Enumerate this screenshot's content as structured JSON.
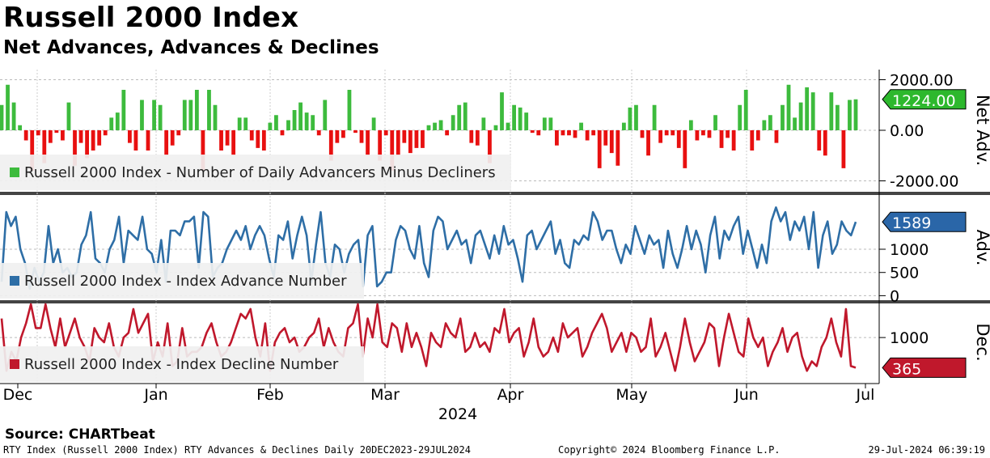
{
  "title": "Russell 2000 Index",
  "subtitle": "Net Advances, Advances & Declines",
  "source": "Source: CHARTbeat",
  "footer": {
    "left": "RTY Index (Russell 2000 Index) RTY Advances & Declines  Daily 20DEC2023-29JUL2024",
    "middle": "Copyright© 2024 Bloomberg Finance L.P.",
    "right": "29-Jul-2024 06:39:19"
  },
  "colors": {
    "positive": "#3dbb3d",
    "negative": "#e81010",
    "advance_line": "#2e6ea6",
    "decline_line": "#c0182c",
    "advance_tag": "#2a66a8",
    "decline_tag": "#c0182c",
    "net_tag": "#2db82d",
    "legend_bg": "#f0f0f0",
    "separator": "#444444"
  },
  "chart_data": [
    {
      "type": "bar",
      "panel": "net",
      "title": "Net Adv.",
      "legend": "Russell 2000 Index - Number of Daily Advancers Minus Decliners",
      "ylim": [
        -2400,
        2400
      ],
      "ticks": [
        2000,
        0,
        -2000
      ],
      "tick_labels": [
        "2000.00",
        "0.00",
        "-2000.00"
      ],
      "last_value_label": "1224.00",
      "values": [
        1000,
        1800,
        1100,
        200,
        -400,
        -1600,
        -200,
        -1300,
        -500,
        -100,
        -400,
        1100,
        -1400,
        -500,
        -1100,
        -800,
        -600,
        -200,
        500,
        700,
        1600,
        -500,
        -800,
        1200,
        -800,
        1200,
        1000,
        -1000,
        -600,
        -200,
        1200,
        1200,
        1600,
        -1600,
        1600,
        1000,
        -800,
        -600,
        -1000,
        500,
        500,
        -400,
        -700,
        -800,
        300,
        600,
        -200,
        400,
        800,
        1100,
        700,
        600,
        -200,
        1200,
        -1200,
        -500,
        -300,
        1600,
        -100,
        -500,
        -1000,
        500,
        -1200,
        -200,
        -1600,
        -1000,
        -500,
        -900,
        -700,
        -700,
        200,
        300,
        400,
        -200,
        600,
        1000,
        1100,
        -500,
        -600,
        500,
        -1300,
        200,
        1500,
        300,
        1000,
        900,
        700,
        -100,
        -200,
        500,
        500,
        -600,
        -200,
        -200,
        -300,
        300,
        -400,
        -200,
        -1500,
        -600,
        -900,
        -1400,
        300,
        900,
        1000,
        -300,
        -1000,
        1000,
        -500,
        -200,
        -200,
        -700,
        -1500,
        400,
        -400,
        -200,
        -300,
        600,
        -700,
        -300,
        -800,
        1000,
        1600,
        -800,
        -400,
        400,
        600,
        -500,
        1000,
        1800,
        500,
        1100,
        1700,
        1500,
        -800,
        -1000,
        1500,
        1000,
        -1500,
        1200,
        1224
      ]
    },
    {
      "type": "line",
      "panel": "adv",
      "title": "Adv.",
      "legend": "Russell 2000 Index - Index Advance Number",
      "ylim": [
        -80,
        2150
      ],
      "ticks": [
        1000,
        500,
        0
      ],
      "tick_labels": [
        "1000",
        "500",
        "0"
      ],
      "last_value_label": "1589",
      "values": [
        300,
        1800,
        1500,
        1700,
        1000,
        700,
        150,
        600,
        300,
        500,
        1500,
        700,
        1000,
        500,
        600,
        400,
        500,
        1100,
        1300,
        1800,
        800,
        700,
        500,
        1000,
        1200,
        1700,
        700,
        1400,
        1300,
        1200,
        1700,
        1000,
        900,
        500,
        1200,
        300,
        1400,
        1400,
        1300,
        1600,
        1600,
        1700,
        600,
        1800,
        1700,
        400,
        600,
        700,
        1000,
        1200,
        1400,
        1200,
        1500,
        1000,
        1300,
        1500,
        1300,
        800,
        400,
        1300,
        1200,
        1600,
        800,
        1300,
        1700,
        1300,
        300,
        1100,
        1800,
        700,
        400,
        1100,
        1000,
        500,
        900,
        1100,
        1200,
        200,
        1300,
        1500,
        200,
        300,
        500,
        500,
        1200,
        1500,
        1400,
        1000,
        800,
        1500,
        700,
        400,
        1400,
        1700,
        1600,
        1000,
        1200,
        1400,
        1100,
        1200,
        700,
        1300,
        1400,
        1100,
        800,
        1300,
        900,
        1500,
        1100,
        1200,
        800,
        300,
        1300,
        1400,
        1000,
        1200,
        1400,
        1600,
        900,
        1200,
        700,
        600,
        1200,
        1100,
        1300,
        1200,
        1800,
        1600,
        1200,
        1400,
        1400,
        1000,
        700,
        1100,
        900,
        1500,
        1200,
        900,
        1300,
        1100,
        1200,
        600,
        1400,
        900,
        600,
        1000,
        1500,
        1000,
        1400,
        1100,
        500,
        1300,
        1700,
        800,
        1400,
        1200,
        1500,
        1700,
        900,
        1400,
        1000,
        600,
        1100,
        700,
        1600,
        1900,
        1600,
        1800,
        1200,
        1600,
        1400,
        1700,
        1000,
        1800,
        600,
        1300,
        1600,
        900,
        1100,
        1600,
        1400,
        1300,
        1589
      ]
    },
    {
      "type": "line",
      "panel": "dec",
      "title": "Dec.",
      "legend": "Russell 2000 Index - Index Decline Number",
      "ylim": [
        100,
        1700
      ],
      "ticks": [
        1000
      ],
      "tick_labels": [
        "1000"
      ],
      "last_value_label": "365",
      "values": [
        1400,
        300,
        700,
        500,
        1000,
        1300,
        1700,
        1200,
        1200,
        1700,
        1200,
        800,
        1400,
        800,
        1100,
        1400,
        1000,
        800,
        500,
        1200,
        1000,
        900,
        1300,
        800,
        600,
        1000,
        1100,
        1600,
        1100,
        1300,
        1500,
        500,
        900,
        600,
        1300,
        400,
        500,
        1200,
        600,
        700,
        700,
        800,
        1100,
        1300,
        900,
        600,
        700,
        900,
        1200,
        1500,
        1400,
        1600,
        1000,
        600,
        1300,
        300,
        900,
        1100,
        1200,
        900,
        1000,
        700,
        800,
        1000,
        1100,
        1400,
        800,
        1200,
        900,
        700,
        600,
        1200,
        1300,
        1700,
        600,
        1400,
        1000,
        1700,
        900,
        800,
        1300,
        1200,
        700,
        1300,
        800,
        1100,
        800,
        400,
        1100,
        900,
        800,
        1300,
        1100,
        1000,
        1400,
        700,
        800,
        1100,
        800,
        900,
        700,
        1200,
        1100,
        1600,
        900,
        1100,
        1200,
        600,
        900,
        1400,
        800,
        600,
        700,
        1000,
        700,
        1300,
        1000,
        1100,
        1200,
        600,
        800,
        1100,
        1300,
        1500,
        1200,
        700,
        900,
        1100,
        700,
        1100,
        1000,
        700,
        800,
        1400,
        600,
        800,
        1100,
        700,
        300,
        800,
        1400,
        900,
        500,
        700,
        900,
        1300,
        1200,
        400,
        1000,
        1500,
        1100,
        700,
        600,
        1400,
        1000,
        800,
        1000,
        400,
        700,
        900,
        1200,
        700,
        1000,
        1100,
        600,
        300,
        500,
        400,
        800,
        1000,
        1400,
        900,
        600,
        1600,
        400,
        365
      ]
    }
  ],
  "x_axis": {
    "months": [
      "Dec",
      "Jan",
      "Feb",
      "Mar",
      "Apr",
      "May",
      "Jun",
      "Jul"
    ],
    "year": "2024"
  }
}
